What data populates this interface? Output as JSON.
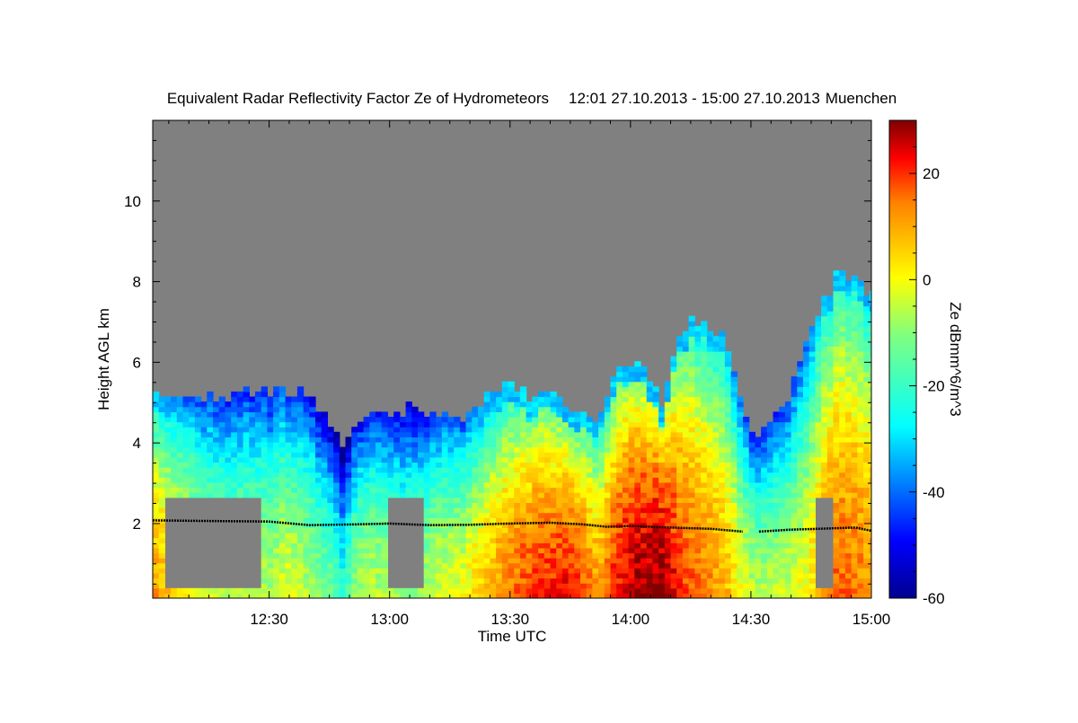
{
  "chart_data": {
    "type": "heatmap",
    "title": "Equivalent Radar Reflectivity Factor Ze of Hydrometeors",
    "period": "12:01 27.10.2013 - 15:00 27.10.2013",
    "location": "Muenchen",
    "xlabel": "Time UTC",
    "ylabel": "Height AGL km",
    "x_range_minutes": [
      1,
      180
    ],
    "x_ticks": [
      {
        "minute": 30,
        "label": "12:30"
      },
      {
        "minute": 60,
        "label": "13:00"
      },
      {
        "minute": 90,
        "label": "13:30"
      },
      {
        "minute": 120,
        "label": "14:00"
      },
      {
        "minute": 150,
        "label": "14:30"
      },
      {
        "minute": 180,
        "label": "15:00"
      }
    ],
    "y_range_km": [
      0.15,
      12.0
    ],
    "y_ticks": [
      {
        "value": 2,
        "label": "2"
      },
      {
        "value": 4,
        "label": "4"
      },
      {
        "value": 6,
        "label": "6"
      },
      {
        "value": 8,
        "label": "8"
      },
      {
        "value": 10,
        "label": "10"
      }
    ],
    "colorbar": {
      "label": "Ze dBmm^6/m^3",
      "range": [
        -60,
        30
      ],
      "ticks": [
        {
          "value": 20,
          "label": "20"
        },
        {
          "value": 0,
          "label": "0"
        },
        {
          "value": -20,
          "label": "-20"
        },
        {
          "value": -40,
          "label": "-40"
        },
        {
          "value": -60,
          "label": "-60"
        }
      ]
    },
    "no_data_color": "#808080",
    "echo_profile": {
      "minute": [
        1,
        8,
        14,
        20,
        26,
        30,
        34,
        40,
        46,
        48,
        52,
        56,
        62,
        66,
        72,
        78,
        84,
        88,
        92,
        96,
        100,
        104,
        108,
        112,
        116,
        120,
        124,
        128,
        132,
        136,
        140,
        144,
        148,
        152,
        156,
        160,
        164,
        168,
        172,
        176,
        180
      ],
      "top_km": [
        5.1,
        5.0,
        5.0,
        5.1,
        5.2,
        5.2,
        5.3,
        5.1,
        4.3,
        3.9,
        4.6,
        4.7,
        4.6,
        4.8,
        4.7,
        4.6,
        5.0,
        5.3,
        5.2,
        5.1,
        5.3,
        5.0,
        4.7,
        4.6,
        5.7,
        5.9,
        5.8,
        4.9,
        6.8,
        6.9,
        6.8,
        6.5,
        4.6,
        4.2,
        4.6,
        5.2,
        6.4,
        7.3,
        8.3,
        8.0,
        7.6
      ],
      "core_dbz": [
        6,
        -4,
        -10,
        -14,
        -12,
        -14,
        -8,
        -14,
        -22,
        -30,
        -14,
        -12,
        -16,
        -18,
        -10,
        -8,
        0,
        6,
        10,
        14,
        14,
        16,
        12,
        4,
        14,
        20,
        22,
        24,
        14,
        10,
        6,
        2,
        -8,
        -14,
        -12,
        -10,
        -6,
        6,
        10,
        8,
        6
      ],
      "low_gap": [
        false,
        true,
        true,
        true,
        true,
        false,
        false,
        false,
        false,
        false,
        false,
        false,
        true,
        true,
        false,
        false,
        false,
        false,
        false,
        false,
        false,
        false,
        false,
        false,
        false,
        false,
        false,
        false,
        false,
        false,
        false,
        false,
        false,
        false,
        false,
        false,
        false,
        true,
        false,
        false,
        false
      ]
    },
    "melting_layer_km": [
      {
        "minute": 1,
        "km": 2.08
      },
      {
        "minute": 20,
        "km": 2.06
      },
      {
        "minute": 30,
        "km": 2.05
      },
      {
        "minute": 40,
        "km": 1.96
      },
      {
        "minute": 52,
        "km": 1.98
      },
      {
        "minute": 60,
        "km": 2.0
      },
      {
        "minute": 70,
        "km": 1.96
      },
      {
        "minute": 80,
        "km": 1.97
      },
      {
        "minute": 90,
        "km": 2.0
      },
      {
        "minute": 100,
        "km": 2.02
      },
      {
        "minute": 108,
        "km": 1.98
      },
      {
        "minute": 114,
        "km": 1.92
      },
      {
        "minute": 120,
        "km": 1.94
      },
      {
        "minute": 130,
        "km": 1.9
      },
      {
        "minute": 140,
        "km": 1.87
      },
      {
        "minute": 148,
        "km": 1.8
      }
    ],
    "melting_layer_late_km": [
      {
        "minute": 152,
        "km": 1.8
      },
      {
        "minute": 160,
        "km": 1.85
      },
      {
        "minute": 170,
        "km": 1.88
      },
      {
        "minute": 176,
        "km": 1.9
      },
      {
        "minute": 180,
        "km": 1.82
      }
    ]
  }
}
